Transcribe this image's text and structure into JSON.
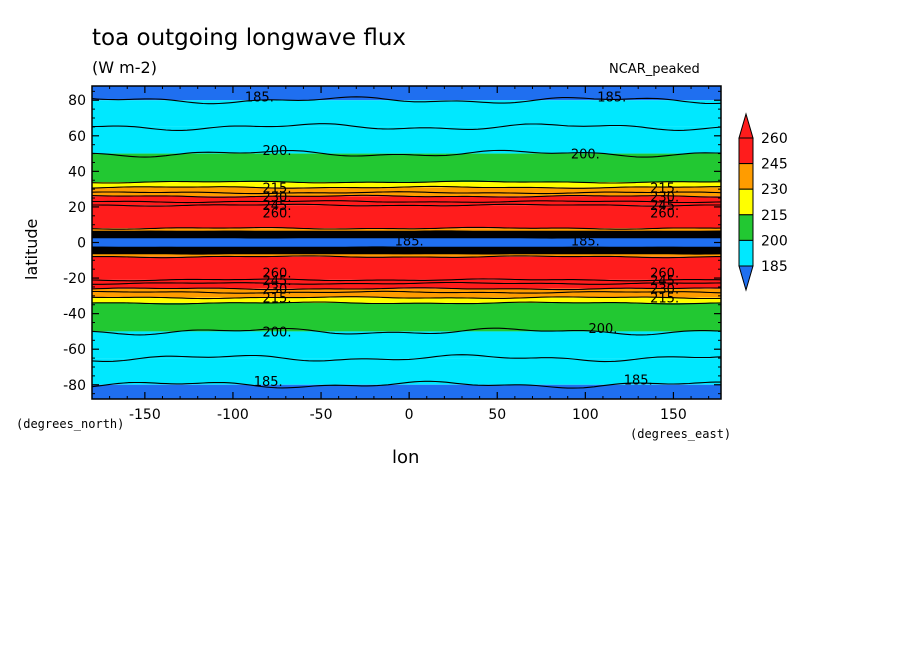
{
  "chart_data": {
    "type": "heatmap",
    "title": "toa outgoing longwave flux",
    "units": "(W m-2)",
    "colormap_name": "NCAR_peaked",
    "xlabel": "lon",
    "ylabel": "latitude",
    "x_units_label": "(degrees_east)",
    "y_units_label": "(degrees_north)",
    "xlim": [
      -180,
      177
    ],
    "ylim": [
      -88,
      88
    ],
    "x_ticks": [
      -150,
      -100,
      -50,
      0,
      50,
      100,
      150
    ],
    "y_ticks": [
      80,
      60,
      40,
      20,
      0,
      -20,
      -40,
      -60,
      -80
    ],
    "x_tick_labels": [
      "-150",
      "-100",
      "-50",
      "0",
      "50",
      "100",
      "150"
    ],
    "y_tick_labels": [
      "80",
      "60",
      "40",
      "20",
      "0",
      "-20",
      "-40",
      "-60",
      "-80"
    ],
    "colorbar": {
      "levels": [
        185,
        200,
        215,
        230,
        245,
        260
      ],
      "labels": [
        "185",
        "200",
        "215",
        "230",
        "245",
        "260"
      ],
      "colors": [
        "#1f6ff0",
        "#00e8ff",
        "#22c832",
        "#ffff00",
        "#ff9c00",
        "#ff1c1c"
      ],
      "under_color": "#1f6ff0",
      "over_color": "#ff1c1c",
      "extend": "both"
    },
    "latitude_bands": [
      {
        "lat": [
          80,
          88
        ],
        "value": 180
      },
      {
        "lat": [
          65,
          80
        ],
        "value": 190
      },
      {
        "lat": [
          50,
          65
        ],
        "value": 196
      },
      {
        "lat": [
          34,
          50
        ],
        "value": 205
      },
      {
        "lat": [
          31,
          34
        ],
        "value": 220
      },
      {
        "lat": [
          26,
          31
        ],
        "value": 235
      },
      {
        "lat": [
          21,
          26
        ],
        "value": 250
      },
      {
        "lat": [
          8,
          21
        ],
        "value": 265
      },
      {
        "lat": [
          6,
          8
        ],
        "value": 232
      },
      {
        "lat": [
          3,
          6
        ],
        "value": 205
      },
      {
        "lat": [
          -3,
          3
        ],
        "value": 180
      },
      {
        "lat": [
          -6,
          -3
        ],
        "value": 205
      },
      {
        "lat": [
          -8,
          -6
        ],
        "value": 232
      },
      {
        "lat": [
          -21,
          -8
        ],
        "value": 265
      },
      {
        "lat": [
          -26,
          -21
        ],
        "value": 250
      },
      {
        "lat": [
          -31,
          -26
        ],
        "value": 235
      },
      {
        "lat": [
          -34,
          -31
        ],
        "value": 220
      },
      {
        "lat": [
          -50,
          -34
        ],
        "value": 205
      },
      {
        "lat": [
          -65,
          -50
        ],
        "value": 196
      },
      {
        "lat": [
          -80,
          -65
        ],
        "value": 190
      },
      {
        "lat": [
          -88,
          -80
        ],
        "value": 180
      }
    ],
    "contour_lines_lat": [
      80,
      65,
      50,
      34,
      31,
      28,
      26,
      23,
      21,
      8,
      6,
      3,
      -3,
      -6,
      -8,
      -21,
      -23,
      -26,
      -28,
      -31,
      -34,
      -50,
      -65,
      -80
    ],
    "contour_labels": [
      {
        "text": "185.",
        "lon": -85,
        "lat": 82
      },
      {
        "text": "185.",
        "lon": 115,
        "lat": 82
      },
      {
        "text": "200.",
        "lon": -75,
        "lat": 52
      },
      {
        "text": "200.",
        "lon": 100,
        "lat": 50
      },
      {
        "text": "215.",
        "lon": -75,
        "lat": 31
      },
      {
        "text": "215.",
        "lon": 145,
        "lat": 31
      },
      {
        "text": "230.",
        "lon": -75,
        "lat": 26
      },
      {
        "text": "230.",
        "lon": 145,
        "lat": 26
      },
      {
        "text": "245.",
        "lon": -75,
        "lat": 21
      },
      {
        "text": "245.",
        "lon": 145,
        "lat": 21
      },
      {
        "text": "260.",
        "lon": -75,
        "lat": 17
      },
      {
        "text": "260.",
        "lon": 145,
        "lat": 17
      },
      {
        "text": "185.",
        "lon": 0,
        "lat": 1
      },
      {
        "text": "185.",
        "lon": 100,
        "lat": 1
      },
      {
        "text": "260.",
        "lon": -75,
        "lat": -17
      },
      {
        "text": "260.",
        "lon": 145,
        "lat": -17
      },
      {
        "text": "245.",
        "lon": -75,
        "lat": -21
      },
      {
        "text": "245.",
        "lon": 145,
        "lat": -21
      },
      {
        "text": "230.",
        "lon": -75,
        "lat": -26
      },
      {
        "text": "230.",
        "lon": 145,
        "lat": -26
      },
      {
        "text": "215.",
        "lon": -75,
        "lat": -31
      },
      {
        "text": "215.",
        "lon": 145,
        "lat": -31
      },
      {
        "text": "200.",
        "lon": -75,
        "lat": -50
      },
      {
        "text": "200.",
        "lon": 110,
        "lat": -48
      },
      {
        "text": "185.",
        "lon": -80,
        "lat": -78
      },
      {
        "text": "185.",
        "lon": 130,
        "lat": -77
      }
    ]
  }
}
